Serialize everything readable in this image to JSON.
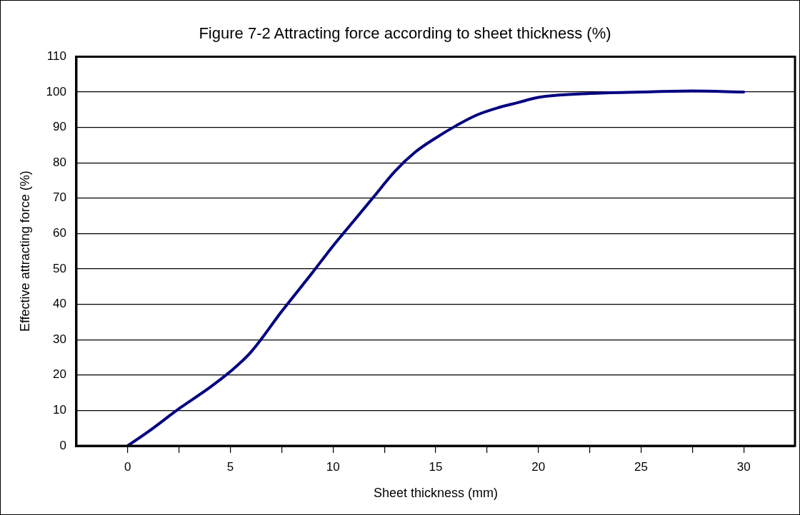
{
  "chart_data": {
    "type": "line",
    "title": "Figure 7-2 Attracting force according to sheet thickness (%)",
    "xlabel": "Sheet thickness (mm)",
    "ylabel": "Effective attracting force (%)",
    "x": [
      0,
      1,
      2.5,
      4,
      5,
      6,
      7.5,
      9,
      10,
      11,
      12,
      13,
      14,
      15,
      16,
      17,
      18,
      19,
      20,
      22.5,
      25,
      27.5,
      30
    ],
    "series": [
      {
        "color": "#000080",
        "values": [
          0,
          4,
          10.5,
          16.5,
          21,
          26.5,
          38,
          49,
          56.5,
          63.5,
          70.5,
          77.5,
          83,
          87,
          90.5,
          93.5,
          95.5,
          97,
          98.5,
          99.6,
          100,
          100.3,
          100
        ]
      }
    ],
    "xlim": [
      -2.5,
      32.5
    ],
    "xticks": [
      0,
      {
        "value": 2.5,
        "label": null
      },
      5,
      {
        "value": 7.5,
        "label": null
      },
      10,
      {
        "value": 12.5,
        "label": null
      },
      15,
      {
        "value": 17.5,
        "label": null
      },
      20,
      {
        "value": 22.5,
        "label": null
      },
      25,
      {
        "value": 27.5,
        "label": null
      },
      30
    ],
    "ylim": [
      0,
      110
    ],
    "yticks": [
      0,
      10,
      20,
      30,
      40,
      50,
      60,
      70,
      80,
      90,
      100,
      110
    ],
    "grid": "y",
    "legend": false,
    "marker": "none",
    "line_style": "solid"
  }
}
